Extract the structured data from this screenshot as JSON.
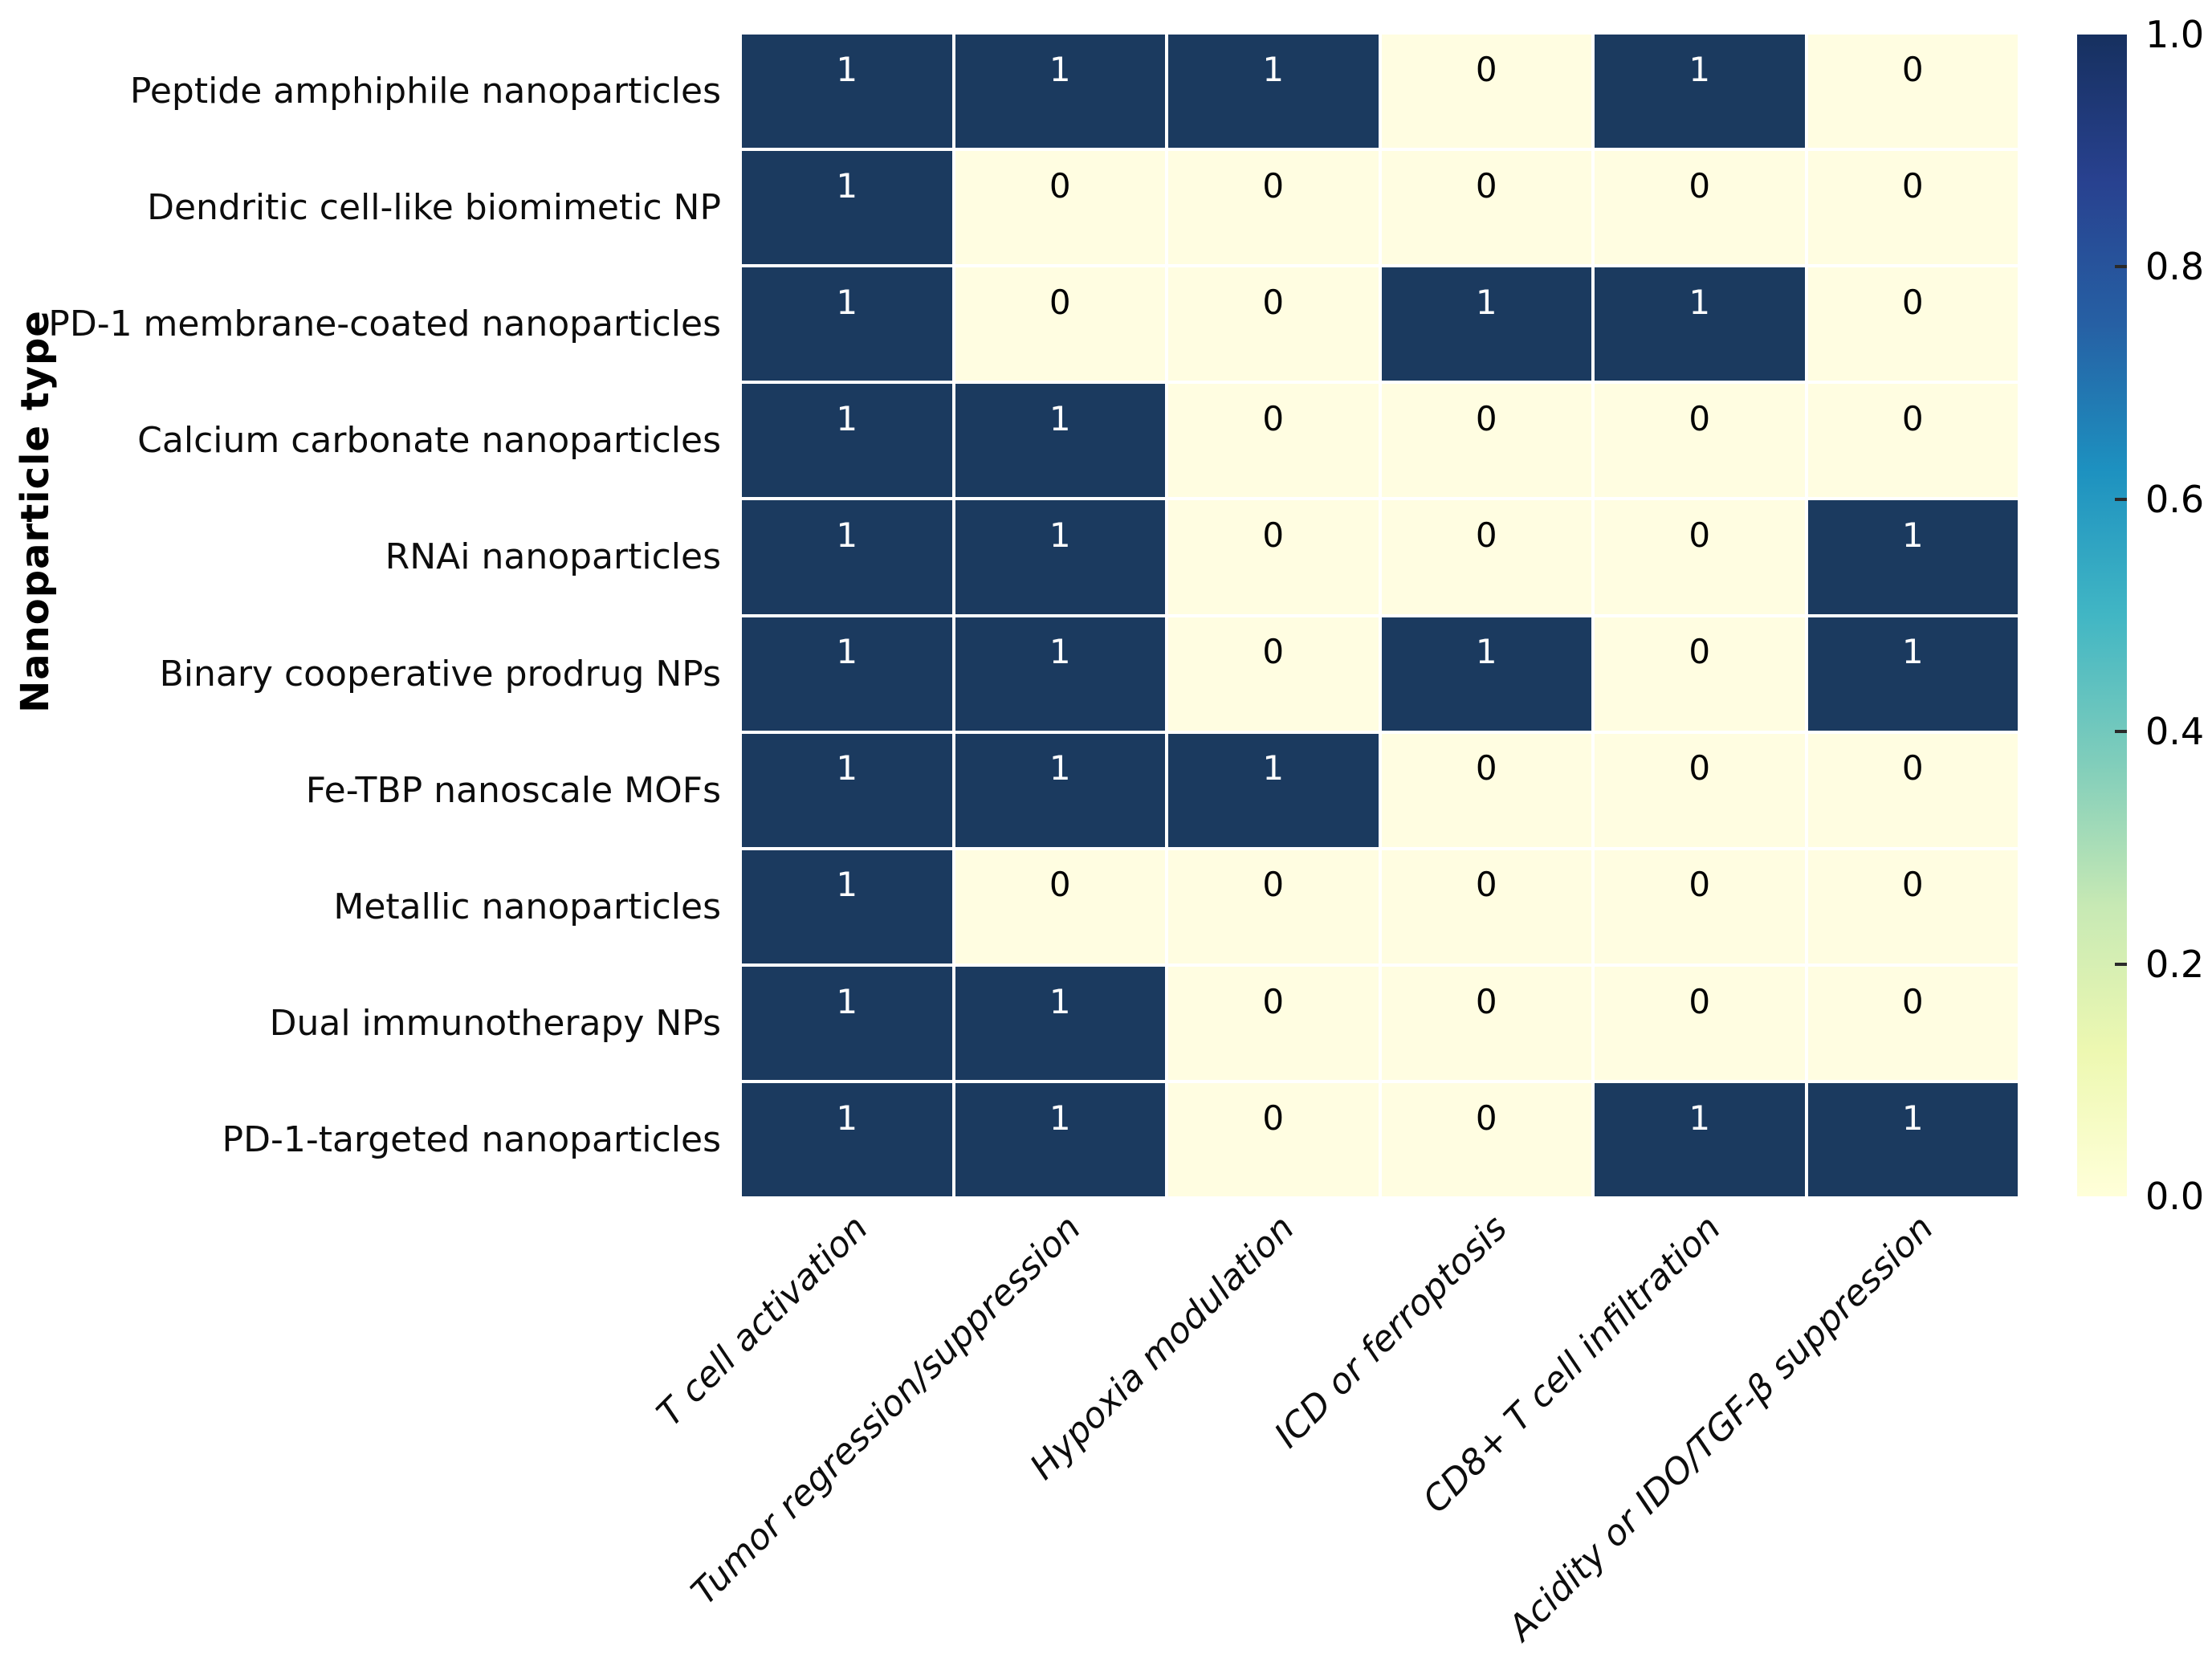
{
  "chart_data": {
    "type": "heatmap",
    "title": "",
    "xlabel": "",
    "ylabel": "Nanoparticle type",
    "x_categories": [
      "T cell activation",
      "Tumor regression/suppression",
      "Hypoxia modulation",
      "ICD or ferroptosis",
      "CD8+ T cell infiltration",
      "Acidity or IDO/TGF-β suppression"
    ],
    "y_categories": [
      "Peptide amphiphile nanoparticles",
      "Dendritic cell-like biomimetic NP",
      "PD-1 membrane-coated nanoparticles",
      "Calcium carbonate nanoparticles",
      "RNAi nanoparticles",
      "Binary cooperative prodrug NPs",
      "Fe-TBP nanoscale MOFs",
      "Metallic nanoparticles",
      "Dual immunotherapy NPs",
      "PD-1-targeted nanoparticles"
    ],
    "values": [
      [
        1,
        1,
        1,
        0,
        1,
        0
      ],
      [
        1,
        0,
        0,
        0,
        0,
        0
      ],
      [
        1,
        0,
        0,
        1,
        1,
        0
      ],
      [
        1,
        1,
        0,
        0,
        0,
        0
      ],
      [
        1,
        1,
        0,
        0,
        0,
        1
      ],
      [
        1,
        1,
        0,
        1,
        0,
        1
      ],
      [
        1,
        1,
        1,
        0,
        0,
        0
      ],
      [
        1,
        0,
        0,
        0,
        0,
        0
      ],
      [
        1,
        1,
        0,
        0,
        0,
        0
      ],
      [
        1,
        1,
        0,
        0,
        1,
        1
      ]
    ],
    "value_range": [
      0,
      1
    ],
    "annotations_shown": true,
    "grid_lines": "white gaps between cells",
    "legend_position": "right colorbar",
    "colorbar": {
      "tick_labels": [
        "1.0",
        "0.8",
        "0.6",
        "0.4",
        "0.2",
        "0.0"
      ],
      "tick_values": [
        1.0,
        0.8,
        0.6,
        0.4,
        0.2,
        0.0
      ],
      "colormap": "YlGnBu"
    },
    "colors": {
      "cell_high": "#1b3a5f",
      "cell_low": "#fffde1",
      "annotation_on_high": "#ffffff",
      "annotation_on_low": "#000000",
      "colormap_stops_bottom_to_top": [
        "#ffffd9",
        "#edf8b1",
        "#c7e9b4",
        "#7fcdbb",
        "#41b6c4",
        "#1d91c0",
        "#2660a4",
        "#28418f",
        "#16305f"
      ]
    }
  }
}
